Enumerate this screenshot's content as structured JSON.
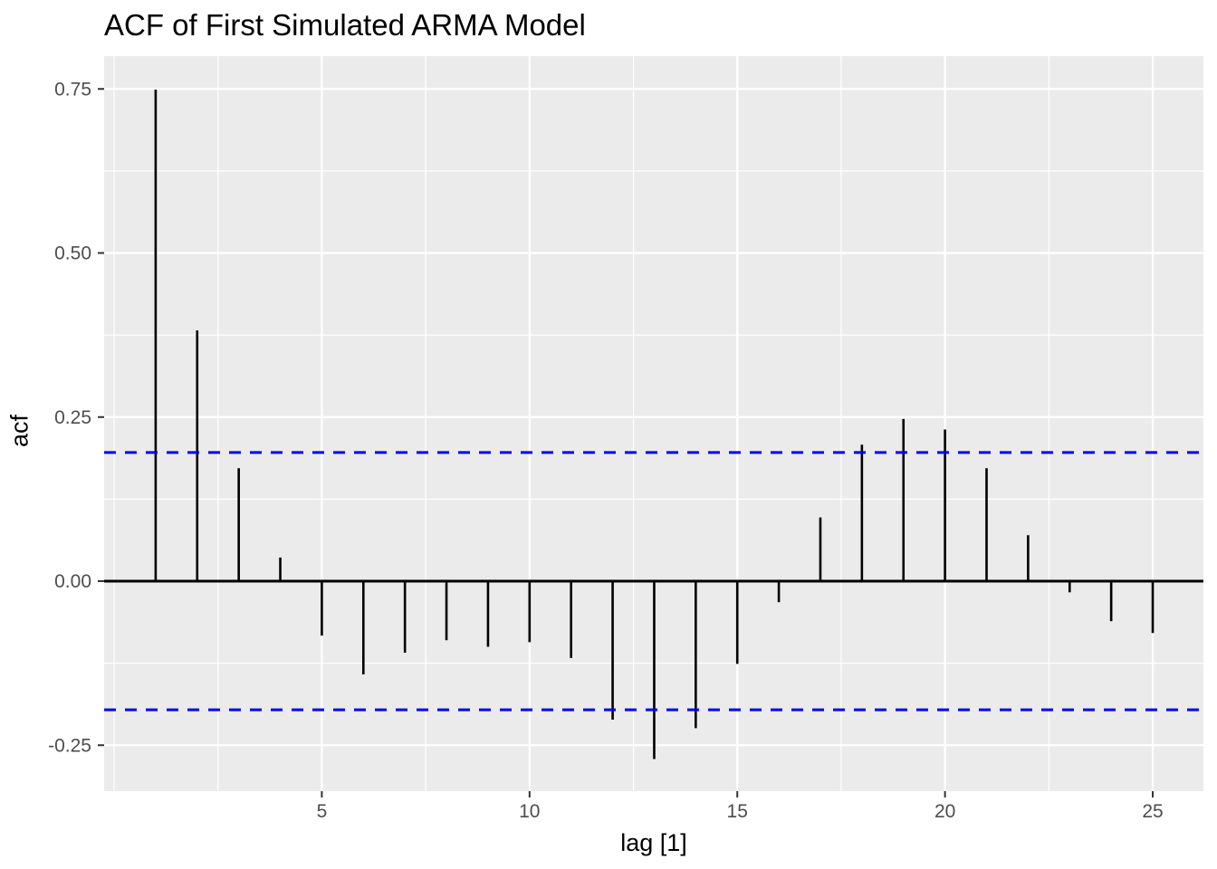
{
  "figure": {
    "title": "ACF of First Simulated ARMA Model",
    "x_axis_title": "lag [1]",
    "y_axis_title": "acf"
  },
  "chart_data": {
    "type": "bar",
    "subtype": "acf-lollipop",
    "title": "ACF of First Simulated ARMA Model",
    "xlabel": "lag [1]",
    "ylabel": "acf",
    "lags": [
      1,
      2,
      3,
      4,
      5,
      6,
      7,
      8,
      9,
      10,
      11,
      12,
      13,
      14,
      15,
      16,
      17,
      18,
      19,
      20,
      21,
      22,
      23,
      24,
      25
    ],
    "values": [
      0.749,
      0.382,
      0.172,
      0.036,
      -0.083,
      -0.142,
      -0.109,
      -0.09,
      -0.1,
      -0.093,
      -0.117,
      -0.211,
      -0.271,
      -0.224,
      -0.126,
      -0.032,
      0.097,
      0.208,
      0.247,
      0.231,
      0.172,
      0.07,
      -0.017,
      -0.061,
      -0.079
    ],
    "confidence_bounds": {
      "upper": 0.196,
      "lower": -0.196,
      "style": "dashed"
    },
    "zero_line": 0,
    "xlim": [
      -0.24,
      26.22
    ],
    "ylim": [
      -0.32,
      0.8
    ],
    "x_ticks": [
      5,
      10,
      15,
      20,
      25
    ],
    "x_tick_labels": [
      "5",
      "10",
      "15",
      "20",
      "25"
    ],
    "x_minor_gridlines": [
      0,
      2.5,
      7.5,
      12.5,
      17.5,
      22.5
    ],
    "y_ticks": [
      -0.25,
      0.0,
      0.25,
      0.5,
      0.75
    ],
    "y_tick_labels": [
      "-0.25",
      "0.00",
      "0.25",
      "0.50",
      "0.75"
    ],
    "y_minor_gridlines": [
      -0.125,
      0.125,
      0.375,
      0.625
    ],
    "grid": true,
    "legend": "none",
    "colors": {
      "panel_background": "#EBEBEB",
      "gridline": "#FFFFFF",
      "bar": "#000000",
      "zero_line": "#000000",
      "confidence_line": "#0000FF",
      "tick_label": "#4D4D4D",
      "tick_mark": "#333333",
      "title": "#000000"
    }
  }
}
